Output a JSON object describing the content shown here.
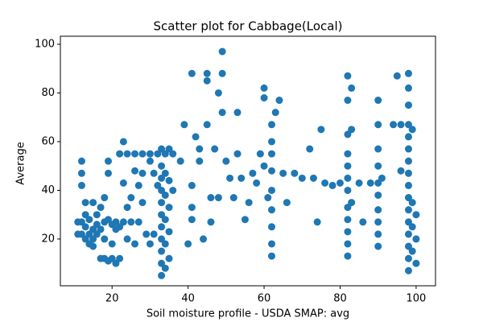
{
  "chart_data": {
    "type": "scatter",
    "title": "Scatter plot for Cabbage(Local)",
    "xlabel": "Soil moisture profile - USDA SMAP: avg",
    "ylabel": "Average",
    "color": "#1f77b4",
    "xlim": [
      6.4,
      105.1
    ],
    "ylim": [
      0.8,
      103.3
    ],
    "xticks": [
      20,
      40,
      60,
      80,
      100
    ],
    "yticks": [
      20,
      40,
      60,
      80,
      100
    ],
    "x": [
      11,
      11,
      12,
      12,
      12,
      12,
      12,
      13,
      13,
      13,
      13,
      14,
      14,
      14,
      15,
      15,
      15,
      15,
      16,
      16,
      16,
      17,
      17,
      17,
      18,
      18,
      18,
      18,
      19,
      19,
      19,
      19,
      20,
      20,
      20,
      21,
      21,
      21,
      22,
      22,
      22,
      23,
      23,
      23,
      24,
      24,
      24,
      25,
      25,
      26,
      26,
      26,
      27,
      27,
      28,
      28,
      28,
      29,
      30,
      30,
      30,
      31,
      31,
      32,
      32,
      33,
      33,
      33,
      33,
      33,
      33,
      33,
      33,
      33,
      33,
      33,
      34,
      34,
      34,
      34,
      34,
      34,
      35,
      35,
      35,
      35,
      35,
      36,
      36,
      38,
      39,
      40,
      41,
      41,
      41,
      41,
      42,
      43,
      43,
      44,
      45,
      45,
      45,
      46,
      46,
      47,
      48,
      48,
      49,
      49,
      49,
      50,
      51,
      52,
      53,
      53,
      54,
      55,
      56,
      57,
      58,
      59,
      60,
      60,
      60,
      61,
      62,
      62,
      62,
      62,
      62,
      62,
      62,
      62,
      62,
      63,
      64,
      65,
      66,
      68,
      70,
      72,
      73,
      74,
      75,
      76,
      78,
      80,
      82,
      82,
      82,
      82,
      82,
      82,
      82,
      82,
      82,
      82,
      82,
      82,
      83,
      83,
      83,
      85,
      86,
      88,
      90,
      90,
      90,
      90,
      90,
      90,
      90,
      90,
      90,
      90,
      91,
      94,
      95,
      96,
      96,
      98,
      98,
      98,
      98,
      98,
      98,
      98,
      98,
      98,
      98,
      98,
      98,
      98,
      98,
      98,
      98,
      99,
      99,
      99,
      99,
      100,
      100,
      100
    ],
    "values": [
      27,
      22,
      22,
      27,
      52,
      47,
      42,
      35,
      30,
      25,
      20,
      18,
      22,
      28,
      35,
      24,
      20,
      17,
      26,
      30,
      22,
      24,
      12,
      33,
      27,
      20,
      37,
      12,
      28,
      47,
      52,
      11,
      26,
      18,
      12,
      27,
      24,
      10,
      55,
      25,
      12,
      60,
      27,
      43,
      55,
      20,
      33,
      27,
      37,
      55,
      48,
      18,
      42,
      27,
      55,
      47,
      35,
      22,
      55,
      52,
      18,
      22,
      47,
      55,
      42,
      57,
      50,
      45,
      40,
      35,
      30,
      25,
      20,
      15,
      10,
      5,
      55,
      47,
      38,
      28,
      18,
      8,
      57,
      44,
      33,
      23,
      12,
      55,
      40,
      52,
      67,
      18,
      88,
      42,
      33,
      28,
      62,
      57,
      52,
      20,
      88,
      85,
      67,
      37,
      27,
      57,
      80,
      37,
      97,
      88,
      72,
      52,
      45,
      37,
      72,
      55,
      45,
      28,
      35,
      47,
      43,
      55,
      82,
      78,
      50,
      37,
      67,
      60,
      55,
      48,
      40,
      32,
      25,
      18,
      13,
      72,
      77,
      47,
      35,
      47,
      45,
      57,
      45,
      27,
      65,
      43,
      42,
      43,
      87,
      77,
      63,
      55,
      50,
      45,
      40,
      33,
      28,
      23,
      18,
      13,
      82,
      65,
      35,
      43,
      27,
      43,
      77,
      67,
      57,
      50,
      43,
      38,
      32,
      27,
      22,
      17,
      45,
      67,
      87,
      67,
      48,
      88,
      82,
      75,
      67,
      62,
      57,
      52,
      47,
      42,
      37,
      32,
      27,
      22,
      17,
      12,
      7,
      65,
      35,
      25,
      15,
      30,
      20,
      10
    ]
  }
}
